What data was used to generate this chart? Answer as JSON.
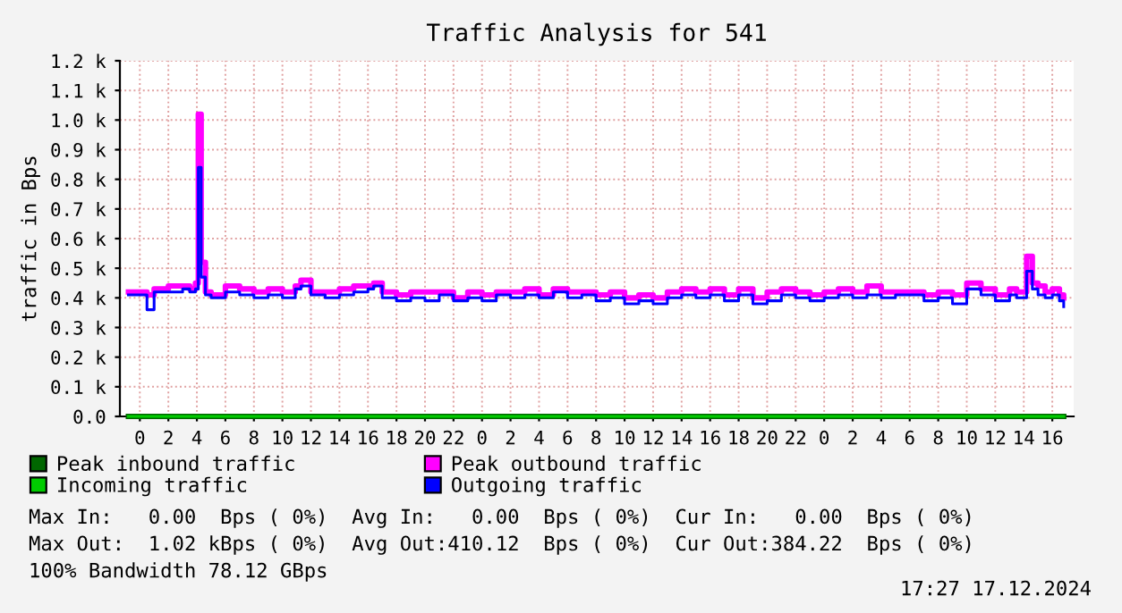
{
  "chart_data": {
    "type": "step",
    "title": "Traffic Analysis for 541",
    "ylabel": "traffic in Bps",
    "x": [
      "2024-12-14T23:12",
      "2024-12-15T00:00",
      "2024-12-15T00:30",
      "2024-12-15T01:00",
      "2024-12-15T02:00",
      "2024-12-15T03:00",
      "2024-12-15T03:30",
      "2024-12-15T03:54",
      "2024-12-15T04:06",
      "2024-12-15T04:18",
      "2024-12-15T04:36",
      "2024-12-15T05:00",
      "2024-12-15T06:00",
      "2024-12-15T07:00",
      "2024-12-15T08:00",
      "2024-12-15T09:00",
      "2024-12-15T10:00",
      "2024-12-15T10:54",
      "2024-12-15T11:18",
      "2024-12-15T12:00",
      "2024-12-15T13:00",
      "2024-12-15T14:00",
      "2024-12-15T15:00",
      "2024-12-15T16:00",
      "2024-12-15T16:24",
      "2024-12-15T17:00",
      "2024-12-15T18:00",
      "2024-12-15T19:00",
      "2024-12-15T20:00",
      "2024-12-15T21:00",
      "2024-12-15T22:00",
      "2024-12-15T23:00",
      "2024-12-16T00:00",
      "2024-12-16T01:00",
      "2024-12-16T02:00",
      "2024-12-16T03:00",
      "2024-12-16T04:00",
      "2024-12-16T05:00",
      "2024-12-16T06:00",
      "2024-12-16T07:00",
      "2024-12-16T08:00",
      "2024-12-16T09:00",
      "2024-12-16T10:00",
      "2024-12-16T11:00",
      "2024-12-16T12:00",
      "2024-12-16T13:00",
      "2024-12-16T14:00",
      "2024-12-16T15:00",
      "2024-12-16T16:00",
      "2024-12-16T17:00",
      "2024-12-16T18:00",
      "2024-12-16T19:00",
      "2024-12-16T20:00",
      "2024-12-16T21:00",
      "2024-12-16T22:00",
      "2024-12-16T23:00",
      "2024-12-17T00:00",
      "2024-12-17T01:00",
      "2024-12-17T02:00",
      "2024-12-17T03:00",
      "2024-12-17T04:00",
      "2024-12-17T05:00",
      "2024-12-17T06:00",
      "2024-12-17T07:00",
      "2024-12-17T08:00",
      "2024-12-17T09:00",
      "2024-12-17T10:00",
      "2024-12-17T11:00",
      "2024-12-17T12:00",
      "2024-12-17T13:00",
      "2024-12-17T13:30",
      "2024-12-17T14:12",
      "2024-12-17T14:36",
      "2024-12-17T15:00",
      "2024-12-17T15:30",
      "2024-12-17T16:00",
      "2024-12-17T16:30",
      "2024-12-17T16:48"
    ],
    "series": [
      {
        "name": "Peak inbound traffic",
        "color": "#006600",
        "x": [
          "2024-12-14T23:12",
          "2024-12-17T16:48"
        ],
        "values": [
          0,
          0
        ]
      },
      {
        "name": "Incoming traffic",
        "color": "#00cc00",
        "x": [
          "2024-12-14T23:12",
          "2024-12-17T16:48"
        ],
        "values": [
          0,
          0
        ]
      },
      {
        "name": "Peak outbound traffic",
        "color": "#ff00ff",
        "values": [
          420,
          420,
          410,
          430,
          440,
          440,
          430,
          450,
          1020,
          520,
          420,
          410,
          440,
          430,
          420,
          430,
          420,
          440,
          460,
          420,
          420,
          430,
          440,
          440,
          450,
          420,
          410,
          420,
          420,
          420,
          400,
          420,
          410,
          420,
          420,
          430,
          410,
          430,
          420,
          420,
          410,
          420,
          400,
          410,
          400,
          420,
          430,
          420,
          430,
          410,
          430,
          400,
          420,
          430,
          420,
          410,
          420,
          430,
          420,
          440,
          420,
          420,
          420,
          410,
          420,
          410,
          450,
          430,
          410,
          430,
          420,
          540,
          450,
          440,
          420,
          430,
          410,
          400
        ]
      },
      {
        "name": "Outgoing traffic",
        "color": "#0000ff",
        "values": [
          410,
          410,
          360,
          420,
          420,
          430,
          420,
          430,
          840,
          470,
          410,
          400,
          420,
          410,
          400,
          410,
          400,
          430,
          440,
          410,
          400,
          410,
          420,
          430,
          440,
          400,
          390,
          400,
          390,
          410,
          390,
          400,
          390,
          410,
          400,
          410,
          400,
          420,
          400,
          410,
          390,
          400,
          380,
          390,
          380,
          400,
          410,
          400,
          410,
          390,
          410,
          380,
          390,
          410,
          400,
          390,
          400,
          410,
          400,
          410,
          400,
          410,
          410,
          390,
          400,
          380,
          430,
          410,
          390,
          410,
          400,
          490,
          430,
          410,
          400,
          410,
          390,
          370
        ]
      }
    ],
    "xlim": [
      "2024-12-14T22:36",
      "2024-12-17T17:30"
    ],
    "ylim": [
      0,
      1200
    ],
    "xticks": [
      {
        "value": "2024-12-15T00:00",
        "label": "0"
      },
      {
        "value": "2024-12-15T02:00",
        "label": "2"
      },
      {
        "value": "2024-12-15T04:00",
        "label": "4"
      },
      {
        "value": "2024-12-15T06:00",
        "label": "6"
      },
      {
        "value": "2024-12-15T08:00",
        "label": "8"
      },
      {
        "value": "2024-12-15T10:00",
        "label": "10"
      },
      {
        "value": "2024-12-15T12:00",
        "label": "12"
      },
      {
        "value": "2024-12-15T14:00",
        "label": "14"
      },
      {
        "value": "2024-12-15T16:00",
        "label": "16"
      },
      {
        "value": "2024-12-15T18:00",
        "label": "18"
      },
      {
        "value": "2024-12-15T20:00",
        "label": "20"
      },
      {
        "value": "2024-12-15T22:00",
        "label": "22"
      },
      {
        "value": "2024-12-16T00:00",
        "label": "0"
      },
      {
        "value": "2024-12-16T02:00",
        "label": "2"
      },
      {
        "value": "2024-12-16T04:00",
        "label": "4"
      },
      {
        "value": "2024-12-16T06:00",
        "label": "6"
      },
      {
        "value": "2024-12-16T08:00",
        "label": "8"
      },
      {
        "value": "2024-12-16T10:00",
        "label": "10"
      },
      {
        "value": "2024-12-16T12:00",
        "label": "12"
      },
      {
        "value": "2024-12-16T14:00",
        "label": "14"
      },
      {
        "value": "2024-12-16T16:00",
        "label": "16"
      },
      {
        "value": "2024-12-16T18:00",
        "label": "18"
      },
      {
        "value": "2024-12-16T20:00",
        "label": "20"
      },
      {
        "value": "2024-12-16T22:00",
        "label": "22"
      },
      {
        "value": "2024-12-17T00:00",
        "label": "0"
      },
      {
        "value": "2024-12-17T02:00",
        "label": "2"
      },
      {
        "value": "2024-12-17T04:00",
        "label": "4"
      },
      {
        "value": "2024-12-17T06:00",
        "label": "6"
      },
      {
        "value": "2024-12-17T08:00",
        "label": "8"
      },
      {
        "value": "2024-12-17T10:00",
        "label": "10"
      },
      {
        "value": "2024-12-17T12:00",
        "label": "12"
      },
      {
        "value": "2024-12-17T14:00",
        "label": "14"
      },
      {
        "value": "2024-12-17T16:00",
        "label": "16"
      }
    ],
    "yticks": [
      {
        "value": 0,
        "label": "0.0"
      },
      {
        "value": 100,
        "label": "0.1 k"
      },
      {
        "value": 200,
        "label": "0.2 k"
      },
      {
        "value": 300,
        "label": "0.3 k"
      },
      {
        "value": 400,
        "label": "0.4 k"
      },
      {
        "value": 500,
        "label": "0.5 k"
      },
      {
        "value": 600,
        "label": "0.6 k"
      },
      {
        "value": 700,
        "label": "0.7 k"
      },
      {
        "value": 800,
        "label": "0.8 k"
      },
      {
        "value": 900,
        "label": "0.9 k"
      },
      {
        "value": 1000,
        "label": "1.0 k"
      },
      {
        "value": 1100,
        "label": "1.1 k"
      },
      {
        "value": 1200,
        "label": "1.2 k"
      }
    ],
    "grid": true,
    "legend": "bottom",
    "annotations": [
      "Max In:   0.00  Bps ( 0%)  Avg In:   0.00  Bps ( 0%)  Cur In:   0.00  Bps ( 0%)",
      "Max Out:  1.02 kBps ( 0%)  Avg Out:410.12  Bps ( 0%)  Cur Out:384.22  Bps ( 0%)",
      "100% Bandwidth 78.12 GBps",
      "17:27 17.12.2024"
    ]
  }
}
